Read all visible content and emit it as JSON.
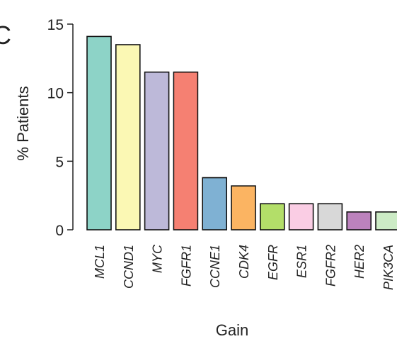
{
  "panel_label": "C",
  "chart_data": {
    "type": "bar",
    "categories": [
      "MCL1",
      "CCND1",
      "MYC",
      "FGFR1",
      "CCNE1",
      "CDK4",
      "EGFR",
      "ESR1",
      "FGFR2",
      "HER2",
      "PIK3CA"
    ],
    "values": [
      14.1,
      13.5,
      11.5,
      11.5,
      3.8,
      3.2,
      1.9,
      1.9,
      1.9,
      1.3,
      1.3
    ],
    "colors": [
      "#8DD3C7",
      "#FBF8B4",
      "#BDB9D9",
      "#F58072",
      "#7FB1D3",
      "#FBB462",
      "#B3DE69",
      "#FACDE4",
      "#D8D8D8",
      "#BC82BD",
      "#CCEBC5"
    ],
    "xlabel": "Gain",
    "ylabel": "% Patients",
    "ylim": [
      0,
      15
    ],
    "yticks": [
      0,
      5,
      10,
      15
    ],
    "grid": false,
    "legend": false
  }
}
